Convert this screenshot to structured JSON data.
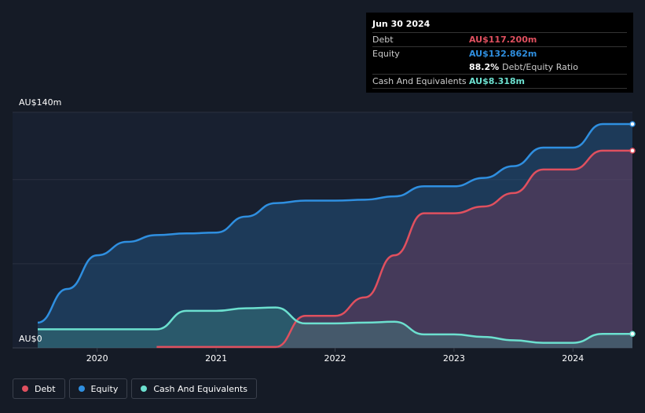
{
  "tooltip": {
    "date": "Jun 30 2024",
    "rows": [
      {
        "label": "Debt",
        "value": "AU$117.200m",
        "color": "#e0505f"
      },
      {
        "label": "Equity",
        "value": "AU$132.862m",
        "color": "#2f8fe0"
      },
      {
        "label": "",
        "value": "88.2%",
        "suffix": "Debt/Equity Ratio",
        "color": "#ffffff"
      },
      {
        "label": "Cash And Equivalents",
        "value": "AU$8.318m",
        "color": "#6ce0cf"
      }
    ]
  },
  "legend": [
    {
      "label": "Debt",
      "color": "#e0505f"
    },
    {
      "label": "Equity",
      "color": "#2f8fe0"
    },
    {
      "label": "Cash And Equivalents",
      "color": "#6ce0cf"
    }
  ],
  "chart_data": {
    "type": "area",
    "title": "",
    "xlabel": "",
    "ylabel": "",
    "x_ticks": [
      "2020",
      "2021",
      "2022",
      "2023",
      "2024"
    ],
    "x_tick_values": [
      2020.0,
      2021.0,
      2022.0,
      2023.0,
      2024.0
    ],
    "xlim": [
      2019.5,
      2024.5
    ],
    "ylim": [
      0,
      140
    ],
    "y_tick_labels": [
      {
        "value": 140,
        "label": "AU$140m"
      },
      {
        "value": 0,
        "label": "AU$0"
      }
    ],
    "series": [
      {
        "name": "Equity",
        "color": "#2f8fe0",
        "points": [
          [
            2019.5,
            15
          ],
          [
            2019.75,
            35
          ],
          [
            2020.0,
            55
          ],
          [
            2020.25,
            63
          ],
          [
            2020.5,
            67
          ],
          [
            2020.75,
            68
          ],
          [
            2021.0,
            68.5
          ],
          [
            2021.25,
            78
          ],
          [
            2021.5,
            86
          ],
          [
            2021.75,
            87.5
          ],
          [
            2022.0,
            87.5
          ],
          [
            2022.25,
            88
          ],
          [
            2022.5,
            90
          ],
          [
            2022.75,
            96
          ],
          [
            2023.0,
            96
          ],
          [
            2023.25,
            101
          ],
          [
            2023.5,
            108
          ],
          [
            2023.75,
            119
          ],
          [
            2024.0,
            119
          ],
          [
            2024.25,
            133
          ],
          [
            2024.5,
            133
          ]
        ]
      },
      {
        "name": "Debt",
        "color": "#e0505f",
        "points": [
          [
            2020.5,
            0.5
          ],
          [
            2020.75,
            0.5
          ],
          [
            2021.0,
            0.5
          ],
          [
            2021.25,
            0.5
          ],
          [
            2021.5,
            0.5
          ],
          [
            2021.75,
            19
          ],
          [
            2022.0,
            19
          ],
          [
            2022.25,
            30
          ],
          [
            2022.5,
            55
          ],
          [
            2022.75,
            80
          ],
          [
            2023.0,
            80
          ],
          [
            2023.25,
            84
          ],
          [
            2023.5,
            92
          ],
          [
            2023.75,
            106
          ],
          [
            2024.0,
            106
          ],
          [
            2024.25,
            117.2
          ],
          [
            2024.5,
            117.2
          ]
        ]
      },
      {
        "name": "Cash And Equivalents",
        "color": "#6ce0cf",
        "points": [
          [
            2019.5,
            11
          ],
          [
            2019.75,
            11
          ],
          [
            2020.0,
            11
          ],
          [
            2020.25,
            11
          ],
          [
            2020.5,
            11
          ],
          [
            2020.75,
            22
          ],
          [
            2021.0,
            22
          ],
          [
            2021.25,
            23.5
          ],
          [
            2021.5,
            24
          ],
          [
            2021.75,
            14.5
          ],
          [
            2022.0,
            14.5
          ],
          [
            2022.25,
            15
          ],
          [
            2022.5,
            15.5
          ],
          [
            2022.75,
            8
          ],
          [
            2023.0,
            8
          ],
          [
            2023.25,
            6.5
          ],
          [
            2023.5,
            4.5
          ],
          [
            2023.75,
            3
          ],
          [
            2024.0,
            3
          ],
          [
            2024.25,
            8.3
          ],
          [
            2024.5,
            8.3
          ]
        ]
      }
    ]
  }
}
